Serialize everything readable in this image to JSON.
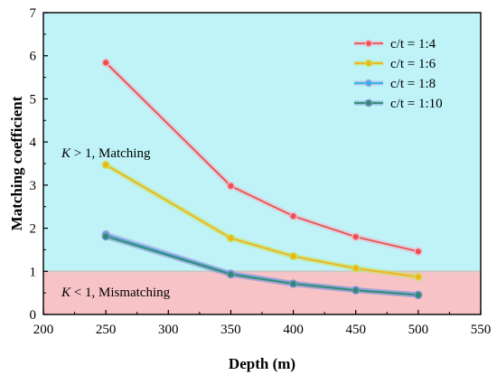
{
  "chart_data": {
    "type": "line",
    "xlabel": "Depth (m)",
    "ylabel": "Matching coefficient",
    "xlim": [
      200,
      550
    ],
    "ylim": [
      0,
      7
    ],
    "xticks": [
      200,
      250,
      300,
      350,
      400,
      450,
      500,
      550
    ],
    "yticks": [
      0,
      1,
      2,
      3,
      4,
      5,
      6,
      7
    ],
    "xtick_labels": [
      "200",
      "250",
      "300",
      "350",
      "400",
      "450",
      "500",
      "550"
    ],
    "ytick_labels": [
      "0",
      "1",
      "2",
      "3",
      "4",
      "5",
      "6",
      "7"
    ],
    "grid": false,
    "legend_position": "top-right",
    "threshold": 1,
    "regions": [
      {
        "label_italic": "K",
        "label_rest": " > 1, Matching",
        "color": "#bff3f7",
        "range": [
          1,
          7
        ]
      },
      {
        "label_italic": "K",
        "label_rest": " < 1, Mismatching",
        "color": "#f7c3c7",
        "range": [
          0,
          1
        ]
      }
    ],
    "x": [
      250,
      350,
      400,
      450,
      500
    ],
    "series": [
      {
        "name": "c/t = 1:4",
        "values": [
          5.84,
          2.98,
          2.28,
          1.8,
          1.46
        ],
        "color": "#e8524f",
        "halo": "#f2b3c8"
      },
      {
        "name": "c/t = 1:6",
        "values": [
          3.47,
          1.77,
          1.35,
          1.07,
          0.87
        ],
        "color": "#f2b21a",
        "halo": "#c5e45a"
      },
      {
        "name": "c/t = 1:8",
        "values": [
          1.86,
          0.95,
          0.72,
          0.57,
          0.46
        ],
        "color": "#2ab3e8",
        "halo": "#a9a6de"
      },
      {
        "name": "c/t = 1:10",
        "values": [
          1.81,
          0.93,
          0.71,
          0.56,
          0.45
        ],
        "color": "#2e8c6c",
        "halo": "#7a8fd0"
      }
    ]
  }
}
